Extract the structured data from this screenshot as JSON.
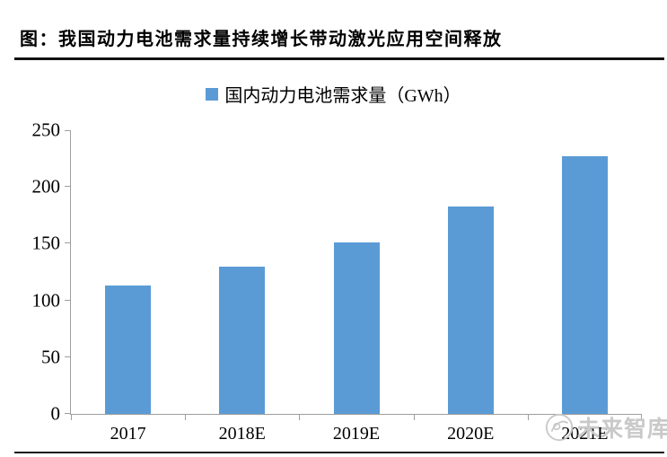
{
  "header": {
    "title": "图：我国动力电池需求量持续增长带动激光应用空间释放"
  },
  "chart_data": {
    "type": "bar",
    "title": "国内动力电池需求量（GWh）",
    "legend": "国内动力电池需求量（GWh）",
    "legend_position": "top-center",
    "categories": [
      "2017",
      "2018E",
      "2019E",
      "2020E",
      "2021E"
    ],
    "values": [
      113,
      130,
      151,
      183,
      227
    ],
    "xlabel": "",
    "ylabel": "",
    "ylim": [
      0,
      250
    ],
    "yticks": [
      0,
      50,
      100,
      150,
      200,
      250
    ],
    "grid": false,
    "bar_color": "#5B9BD5",
    "axis_color": "#9E9E9E",
    "text_color": "#000000"
  },
  "watermark": {
    "text": "未来智库",
    "color": "#C9C9C9"
  }
}
